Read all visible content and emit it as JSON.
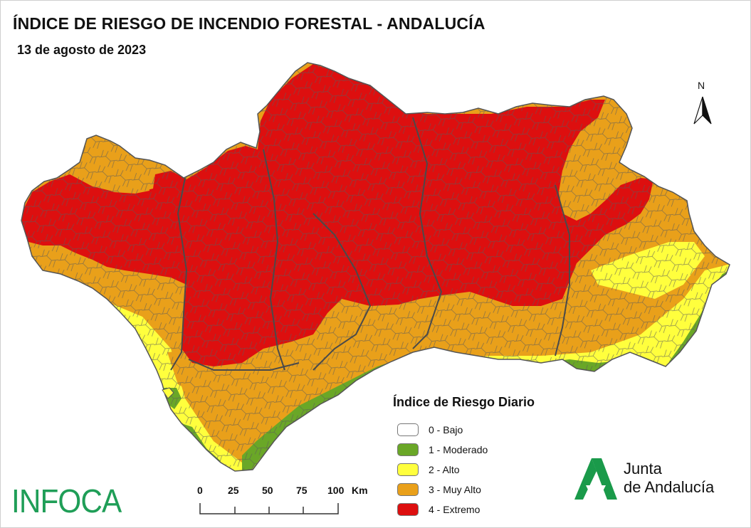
{
  "title": "ÍNDICE DE RIESGO DE INCENDIO FORESTAL - ANDALUCÍA",
  "date": "13 de agosto de 2023",
  "north_label": "N",
  "legend": {
    "title": "Índice de Riesgo Diario",
    "items": [
      {
        "label": "0 - Bajo",
        "color": "#ffffff"
      },
      {
        "label": "1 - Moderado",
        "color": "#6aa727"
      },
      {
        "label": "2 - Alto",
        "color": "#ffff3d"
      },
      {
        "label": "3 - Muy Alto",
        "color": "#e9a01a"
      },
      {
        "label": "4 - Extremo",
        "color": "#dd0f0f"
      }
    ]
  },
  "scale_bar": {
    "ticks": [
      "0",
      "25",
      "50",
      "75",
      "100"
    ],
    "unit": "Km"
  },
  "logos": {
    "infoca": "INFOCA",
    "junta_line1": "Junta",
    "junta_line2": "de Andalucía",
    "infoca_color": "#1f9e57",
    "junta_color": "#1a9a4a"
  }
}
